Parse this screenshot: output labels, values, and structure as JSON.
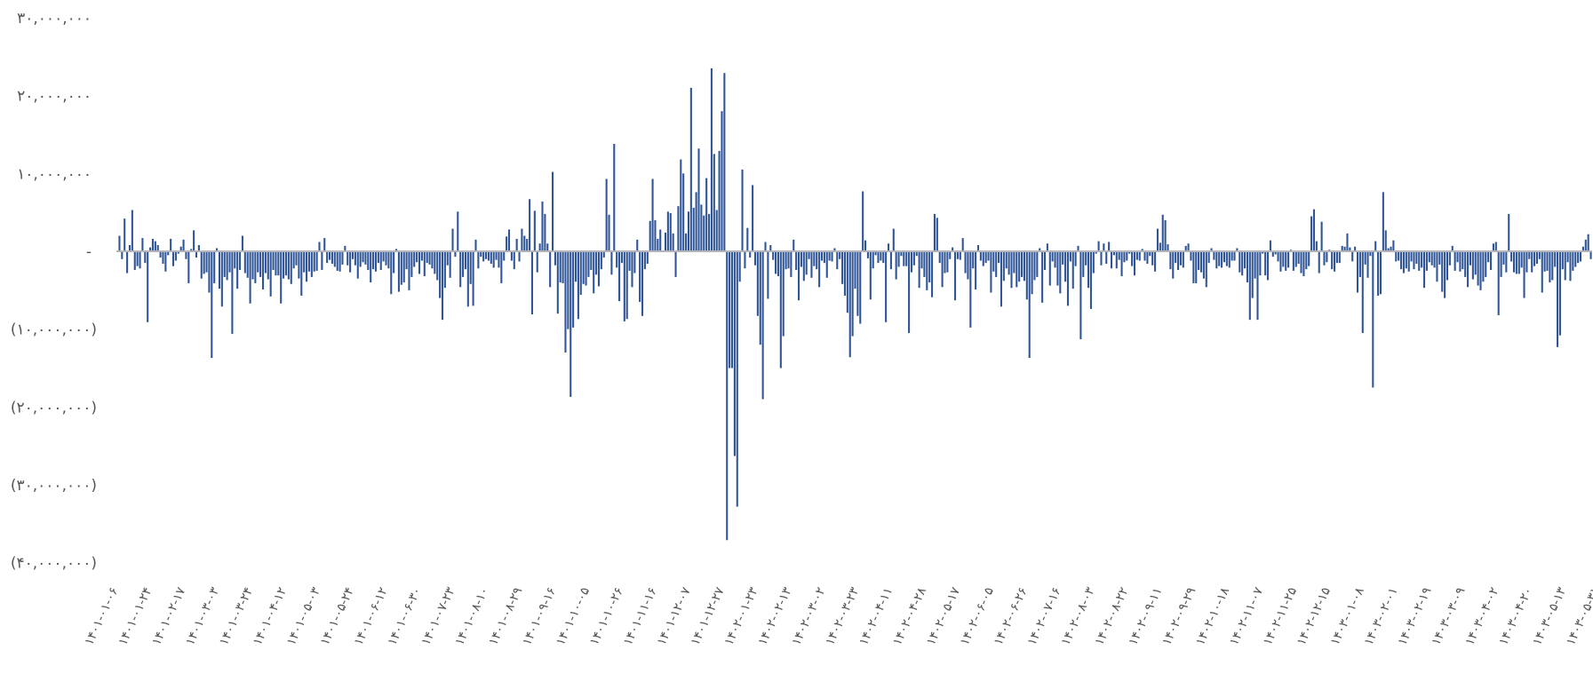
{
  "chart_data": {
    "type": "bar",
    "title": "",
    "xlabel": "",
    "ylabel": "",
    "ylim": [
      -40000000,
      30000000
    ],
    "grid": false,
    "legend": "none",
    "bar_color": "#2f5597",
    "baseline_color": "#b4b4bb",
    "y_ticks": [
      {
        "value": 30000000,
        "label": "۳۰,۰۰۰,۰۰۰"
      },
      {
        "value": 20000000,
        "label": "۲۰,۰۰۰,۰۰۰"
      },
      {
        "value": 10000000,
        "label": "۱۰,۰۰۰,۰۰۰"
      },
      {
        "value": 0,
        "label": "-"
      },
      {
        "value": -10000000,
        "label": "(۱۰,۰۰۰,۰۰۰)"
      },
      {
        "value": -20000000,
        "label": "(۲۰,۰۰۰,۰۰۰)"
      },
      {
        "value": -30000000,
        "label": "(۳۰,۰۰۰,۰۰۰)"
      },
      {
        "value": -40000000,
        "label": "(۴۰,۰۰۰,۰۰۰)"
      }
    ],
    "x_tick_labels": [
      "۱۴۰۱-۰۱-۰۶",
      "۱۴۰۱-۰۱-۲۴",
      "۱۴۰۱-۰۲-۱۷",
      "۱۴۰۱-۰۳-۰۳",
      "۱۴۰۱-۰۳-۲۴",
      "۱۴۰۱-۰۴-۱۲",
      "۱۴۰۱-۰۵-۰۳",
      "۱۴۰۱-۰۵-۲۴",
      "۱۴۰۱-۰۶-۱۲",
      "۱۴۰۱-۰۶-۳۰",
      "۱۴۰۱-۰۷-۲۳",
      "۱۴۰۱-۰۸-۱۰",
      "۱۴۰۱-۰۸-۲۹",
      "۱۴۰۱-۰۹-۱۶",
      "۱۴۰۱-۱۰-۰۵",
      "۱۴۰۱-۱۰-۲۶",
      "۱۴۰۱-۱۱-۱۶",
      "۱۴۰۱-۱۲-۰۷",
      "۱۴۰۱-۱۲-۲۷",
      "۱۴۰۲-۰۱-۲۳",
      "۱۴۰۲-۰۲-۱۳",
      "۱۴۰۲-۰۳-۰۲",
      "۱۴۰۲-۰۳-۲۳",
      "۱۴۰۲-۰۴-۱۱",
      "۱۴۰۲-۰۴-۲۸",
      "۱۴۰۲-۰۵-۱۷",
      "۱۴۰۲-۰۶-۰۵",
      "۱۴۰۲-۰۶-۲۶",
      "۱۴۰۲-۰۷-۱۶",
      "۱۴۰۲-۰۸-۰۳",
      "۱۴۰۲-۰۸-۲۲",
      "۱۴۰۲-۰۹-۱۱",
      "۱۴۰۲-۰۹-۲۹",
      "۱۴۰۲-۱۰-۱۸",
      "۱۴۰۲-۱۱-۰۷",
      "۱۴۰۲-۱۱-۲۵",
      "۱۴۰۲-۱۲-۱۵",
      "۱۴۰۳-۰۱-۰۸",
      "۱۴۰۳-۰۲-۰۱",
      "۱۴۰۳-۰۲-۱۹",
      "۱۴۰۳-۰۳-۰۹",
      "۱۴۰۳-۰۴-۰۲",
      "۱۴۰۳-۰۴-۲۰",
      "۱۴۰۳-۰۵-۱۳",
      "۱۴۰۳-۰۵-۳۱"
    ],
    "values": [
      2000000,
      -1000000,
      4200000,
      -2800000,
      800000,
      5300000,
      -2400000,
      -1900000,
      -2200000,
      1700000,
      -1500000,
      -9100000,
      500000,
      1600000,
      1300000,
      800000,
      -800000,
      -1600000,
      -2600000,
      -500000,
      1600000,
      -1900000,
      -1200000,
      -300000,
      600000,
      1500000,
      -1000000,
      -4100000,
      300000,
      2700000,
      -800000,
      800000,
      -3500000,
      -2900000,
      -2700000,
      -5300000,
      -13700000,
      -4100000,
      400000,
      -4800000,
      -7100000,
      -3300000,
      -3700000,
      -2700000,
      -10600000,
      -2200000,
      -4800000,
      -2400000,
      2000000,
      -2800000,
      -3400000,
      -6700000,
      -3600000,
      -4100000,
      -2700000,
      -3300000,
      -4900000,
      -2800000,
      -3600000,
      -5800000,
      -2400000,
      -3100000,
      -3100000,
      -6700000,
      -3500000,
      -3100000,
      -3600000,
      -4200000,
      -2200000,
      -1800000,
      -3500000,
      -5700000,
      -2700000,
      -3900000,
      -2600000,
      -3300000,
      -2600000,
      -2500000,
      1200000,
      -2400000,
      1700000,
      -1500000,
      -1100000,
      -1600000,
      -2000000,
      -2500000,
      -2600000,
      -1700000,
      700000,
      -1800000,
      -2700000,
      -1000000,
      -1800000,
      -3500000,
      -2000000,
      -1400000,
      -1700000,
      -2400000,
      -4000000,
      -2300000,
      -2600000,
      -1500000,
      -2400000,
      -1300000,
      -1800000,
      -2200000,
      -5500000,
      -2800000,
      300000,
      -5200000,
      -4300000,
      -4000000,
      -2300000,
      -5000000,
      -3300000,
      -2000000,
      -1400000,
      -2900000,
      -1200000,
      -3200000,
      -1500000,
      -1700000,
      -2200000,
      -2900000,
      -3700000,
      -6000000,
      -8800000,
      -4700000,
      -1800000,
      -3400000,
      2900000,
      -700000,
      5100000,
      -4600000,
      -3300000,
      -2300000,
      -7100000,
      -4200000,
      -7000000,
      1500000,
      -2200000,
      -700000,
      -1300000,
      -1000000,
      -1200000,
      -1600000,
      -2100000,
      -1100000,
      -2100000,
      -4100000,
      -1200000,
      1900000,
      2800000,
      -1200000,
      -2300000,
      1600000,
      -1300000,
      2900000,
      2000000,
      1600000,
      6700000,
      -8100000,
      5200000,
      -2700000,
      1000000,
      6400000,
      4800000,
      1000000,
      -4600000,
      10200000,
      -1800000,
      -8000000,
      -4000000,
      -4100000,
      -13000000,
      -10000000,
      -18700000,
      -9800000,
      -3900000,
      -8700000,
      -5600000,
      -4200000,
      -4400000,
      -3300000,
      -2400000,
      -5400000,
      -3000000,
      -4500000,
      -2300000,
      -800000,
      9300000,
      4700000,
      -3000000,
      13800000,
      -2100000,
      -6400000,
      -1500000,
      -9000000,
      -8700000,
      -2500000,
      -4600000,
      -2800000,
      1500000,
      -6500000,
      -8300000,
      -2300000,
      -1600000,
      3900000,
      9300000,
      4000000,
      1600000,
      2800000,
      -100000,
      2400000,
      5100000,
      4900000,
      2300000,
      -3300000,
      5800000,
      11800000,
      10000000,
      2300000,
      5100000,
      21000000,
      5600000,
      7600000,
      13200000,
      6000000,
      4600000,
      9400000,
      4800000,
      23500000,
      12500000,
      5300000,
      12900000,
      18000000,
      22900000,
      -37100000,
      -15000000,
      -15000000,
      -26300000,
      -32800000,
      -3900000,
      10500000,
      -2200000,
      3000000,
      -800000,
      8500000,
      -1800000,
      -8300000,
      -12000000,
      -19000000,
      1200000,
      -6100000,
      800000,
      -1100000,
      -2900000,
      -3200000,
      -15000000,
      -10900000,
      -2300000,
      -2200000,
      -3300000,
      1500000,
      -2400000,
      -6300000,
      -2000000,
      -3800000,
      -3000000,
      -1000000,
      -3400000,
      -1900000,
      -2300000,
      -4600000,
      -1200000,
      -1500000,
      -3400000,
      -1200000,
      -1300000,
      400000,
      -2300000,
      -1000000,
      -4200000,
      -5700000,
      -7900000,
      -13600000,
      -10900000,
      -4800000,
      -8300000,
      -9300000,
      7700000,
      1400000,
      -900000,
      -6200000,
      -2200000,
      -500000,
      -1500000,
      -1200000,
      -1500000,
      -9100000,
      1000000,
      -2300000,
      2900000,
      -3600000,
      -2000000,
      -600000,
      -1900000,
      -1900000,
      -10500000,
      -2700000,
      -1800000,
      -600000,
      -4700000,
      -2200000,
      -3300000,
      -5000000,
      -4000000,
      -5900000,
      4800000,
      4300000,
      -1500000,
      -4600000,
      -2800000,
      -2700000,
      -1000000,
      500000,
      -6300000,
      -1000000,
      -1100000,
      1700000,
      -2800000,
      -3600000,
      -9800000,
      -2200000,
      -4900000,
      800000,
      -1200000,
      -1900000,
      -1500000,
      -1200000,
      -5300000,
      -2600000,
      -3300000,
      -1500000,
      -7100000,
      -3800000,
      -2200000,
      -3000000,
      -4700000,
      -2800000,
      -4600000,
      -3900000,
      -3300000,
      -3800000,
      -6200000,
      -13700000,
      -5500000,
      -3700000,
      -3300000,
      400000,
      -6600000,
      -2400000,
      1000000,
      -4400000,
      -1300000,
      -2100000,
      -4400000,
      -5400000,
      -1700000,
      -3900000,
      -7000000,
      -1300000,
      -4800000,
      -1900000,
      700000,
      -11300000,
      -3300000,
      -1800000,
      -4700000,
      -7400000,
      -2800000,
      -300000,
      1300000,
      -1800000,
      1000000,
      -1600000,
      1200000,
      -2200000,
      -500000,
      -2200000,
      -1100000,
      -3200000,
      -1400000,
      -1200000,
      -300000,
      -1900000,
      -3100000,
      -1100000,
      -1200000,
      300000,
      -1200000,
      -1600000,
      -600000,
      -1800000,
      -2600000,
      2900000,
      1100000,
      4700000,
      4000000,
      900000,
      -2300000,
      -3500000,
      -1500000,
      -2400000,
      -1800000,
      -2100000,
      700000,
      1000000,
      -1200000,
      -4100000,
      -4100000,
      -2400000,
      -2700000,
      -3500000,
      -4600000,
      -1500000,
      400000,
      -1100000,
      -2200000,
      -1900000,
      -2100000,
      -1400000,
      -1900000,
      -2100000,
      -1200000,
      -1200000,
      400000,
      -2700000,
      -3100000,
      -2200000,
      -4000000,
      -8800000,
      -6000000,
      -3500000,
      -8800000,
      -3100000,
      -300000,
      -3100000,
      -3700000,
      1400000,
      -700000,
      -400000,
      -1300000,
      -2600000,
      -2000000,
      -2500000,
      -2100000,
      200000,
      -2500000,
      -2000000,
      -1600000,
      -2800000,
      -3200000,
      -2300000,
      -1900000,
      4500000,
      5400000,
      1300000,
      -2800000,
      3800000,
      -1800000,
      -1400000,
      200000,
      -2300000,
      -2600000,
      -1500000,
      -1500000,
      700000,
      600000,
      2300000,
      500000,
      -1300000,
      600000,
      -5300000,
      -3300000,
      -10500000,
      -1700000,
      -3400000,
      -600000,
      -17500000,
      1300000,
      -5700000,
      -5500000,
      7600000,
      2700000,
      400000,
      600000,
      1400000,
      -1300000,
      -1200000,
      -2300000,
      -2800000,
      -2200000,
      -2600000,
      -1300000,
      -2300000,
      -1600000,
      -2500000,
      -2100000,
      -4700000,
      -2500000,
      -1400000,
      -1800000,
      -2100000,
      -3900000,
      -1700000,
      -5200000,
      -6000000,
      -3700000,
      -1800000,
      700000,
      -2500000,
      -1400000,
      -2600000,
      -2300000,
      -3300000,
      -4600000,
      -1800000,
      -3600000,
      -3000000,
      -4400000,
      -5000000,
      -3900000,
      -3300000,
      -1400000,
      -2400000,
      1000000,
      1200000,
      -8200000,
      -3300000,
      -1700000,
      -2700000,
      4800000,
      -1300000,
      -2700000,
      -2900000,
      -2900000,
      -2100000,
      -6000000,
      -2700000,
      -1000000,
      -2700000,
      -1900000,
      -1600000,
      -1000000,
      -5300000,
      -2600000,
      -2500000,
      -4000000,
      -3700000,
      -2000000,
      -12300000,
      -10800000,
      -2300000,
      -3700000,
      -1400000,
      -3800000,
      -2500000,
      -2000000,
      -1500000,
      -1300000,
      600000,
      1500000,
      2200000,
      -1000000
    ]
  }
}
